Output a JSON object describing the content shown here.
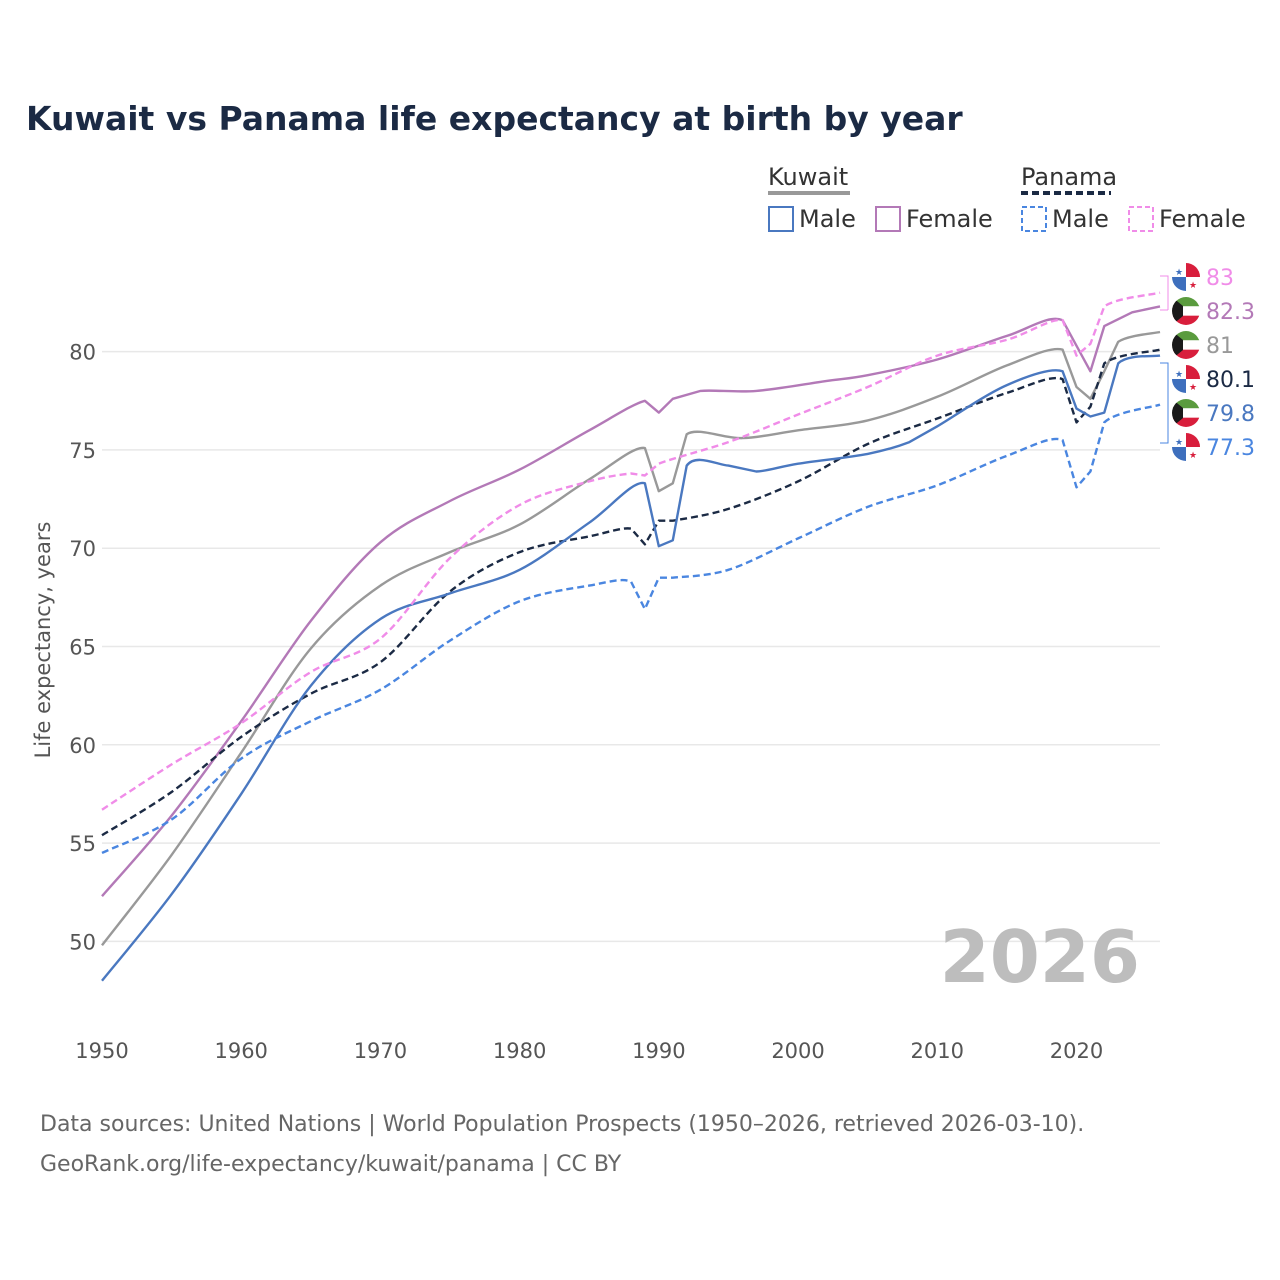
{
  "chart_data": {
    "type": "line",
    "title": "Kuwait vs Panama life expectancy at birth by year",
    "xlabel": "",
    "ylabel": "Life expectancy, years",
    "xlim": [
      1950,
      2026
    ],
    "ylim": [
      46,
      84
    ],
    "x_ticks": [
      1950,
      1960,
      1970,
      1980,
      1990,
      2000,
      2010,
      2020
    ],
    "y_ticks": [
      50,
      55,
      60,
      65,
      70,
      75,
      80
    ],
    "year_watermark": "2026",
    "legend": {
      "groups": [
        {
          "name": "Kuwait",
          "color": "#999999",
          "dash": "solid",
          "items": [
            "Male",
            "Female"
          ]
        },
        {
          "name": "Panama",
          "color": "#1b2a44",
          "dash": "dashed",
          "items": [
            "Male",
            "Female"
          ]
        }
      ]
    },
    "series": [
      {
        "name": "Kuwait Female",
        "country": "Kuwait",
        "color": "#b379b7",
        "dash": "solid",
        "end_label": "82.3",
        "points": [
          [
            1950,
            52.3
          ],
          [
            1955,
            56.4
          ],
          [
            1960,
            61.2
          ],
          [
            1965,
            66.3
          ],
          [
            1970,
            70.3
          ],
          [
            1975,
            72.4
          ],
          [
            1980,
            74.0
          ],
          [
            1985,
            76.0
          ],
          [
            1989,
            77.5
          ],
          [
            1990,
            76.9
          ],
          [
            1991,
            77.6
          ],
          [
            1993,
            78.0
          ],
          [
            1997,
            78.0
          ],
          [
            2002,
            78.5
          ],
          [
            2005,
            78.8
          ],
          [
            2010,
            79.6
          ],
          [
            2015,
            80.8
          ],
          [
            2019,
            81.6
          ],
          [
            2021,
            79.0
          ],
          [
            2022,
            81.3
          ],
          [
            2024,
            82.0
          ],
          [
            2026,
            82.3
          ]
        ]
      },
      {
        "name": "Kuwait Both",
        "country": "Kuwait",
        "color": "#999999",
        "dash": "solid",
        "end_label": "81",
        "points": [
          [
            1950,
            49.8
          ],
          [
            1955,
            54.4
          ],
          [
            1960,
            59.6
          ],
          [
            1965,
            64.9
          ],
          [
            1970,
            68.1
          ],
          [
            1975,
            69.8
          ],
          [
            1980,
            71.2
          ],
          [
            1985,
            73.5
          ],
          [
            1989,
            75.1
          ],
          [
            1990,
            72.9
          ],
          [
            1991,
            73.3
          ],
          [
            1992,
            75.8
          ],
          [
            1996,
            75.6
          ],
          [
            2000,
            76.0
          ],
          [
            2005,
            76.5
          ],
          [
            2010,
            77.7
          ],
          [
            2015,
            79.3
          ],
          [
            2019,
            80.1
          ],
          [
            2020,
            78.2
          ],
          [
            2021,
            77.6
          ],
          [
            2022,
            79.0
          ],
          [
            2023,
            80.5
          ],
          [
            2026,
            81.0
          ]
        ]
      },
      {
        "name": "Panama Both",
        "country": "Panama",
        "color": "#1b2a44",
        "dash": "dashed",
        "end_label": "80.1",
        "points": [
          [
            1950,
            55.4
          ],
          [
            1955,
            57.6
          ],
          [
            1960,
            60.4
          ],
          [
            1965,
            62.6
          ],
          [
            1970,
            64.2
          ],
          [
            1975,
            67.8
          ],
          [
            1980,
            69.8
          ],
          [
            1985,
            70.6
          ],
          [
            1988,
            71.0
          ],
          [
            1989,
            70.2
          ],
          [
            1990,
            71.4
          ],
          [
            1991,
            71.4
          ],
          [
            1995,
            72.0
          ],
          [
            2000,
            73.4
          ],
          [
            2005,
            75.3
          ],
          [
            2010,
            76.6
          ],
          [
            2015,
            77.9
          ],
          [
            2019,
            78.6
          ],
          [
            2020,
            76.4
          ],
          [
            2021,
            77.2
          ],
          [
            2022,
            79.4
          ],
          [
            2026,
            80.1
          ]
        ]
      },
      {
        "name": "Kuwait Male",
        "country": "Kuwait",
        "color": "#4a78c0",
        "dash": "solid",
        "end_label": "79.8",
        "points": [
          [
            1950,
            48.0
          ],
          [
            1955,
            52.4
          ],
          [
            1960,
            57.5
          ],
          [
            1965,
            63.0
          ],
          [
            1970,
            66.4
          ],
          [
            1975,
            67.7
          ],
          [
            1980,
            68.9
          ],
          [
            1985,
            71.3
          ],
          [
            1989,
            73.3
          ],
          [
            1990,
            70.1
          ],
          [
            1991,
            70.4
          ],
          [
            1992,
            74.2
          ],
          [
            1995,
            74.2
          ],
          [
            1997,
            73.9
          ],
          [
            2000,
            74.3
          ],
          [
            2005,
            74.8
          ],
          [
            2008,
            75.4
          ],
          [
            2010,
            76.2
          ],
          [
            2015,
            78.3
          ],
          [
            2019,
            79.0
          ],
          [
            2020,
            77.1
          ],
          [
            2021,
            76.7
          ],
          [
            2022,
            76.9
          ],
          [
            2023,
            79.4
          ],
          [
            2026,
            79.8
          ]
        ]
      },
      {
        "name": "Panama Male",
        "country": "Panama",
        "color": "#4a86e0",
        "dash": "dashed",
        "end_label": "77.3",
        "points": [
          [
            1950,
            54.5
          ],
          [
            1955,
            56.2
          ],
          [
            1960,
            59.3
          ],
          [
            1965,
            61.2
          ],
          [
            1970,
            62.8
          ],
          [
            1975,
            65.3
          ],
          [
            1980,
            67.3
          ],
          [
            1985,
            68.1
          ],
          [
            1988,
            68.3
          ],
          [
            1989,
            66.9
          ],
          [
            1990,
            68.5
          ],
          [
            1991,
            68.5
          ],
          [
            1995,
            68.9
          ],
          [
            2000,
            70.5
          ],
          [
            2005,
            72.1
          ],
          [
            2010,
            73.2
          ],
          [
            2015,
            74.7
          ],
          [
            2019,
            75.5
          ],
          [
            2020,
            73.1
          ],
          [
            2021,
            73.9
          ],
          [
            2022,
            76.4
          ],
          [
            2026,
            77.3
          ]
        ]
      },
      {
        "name": "Panama Female",
        "country": "Panama",
        "color": "#f08ce8",
        "dash": "dashed",
        "end_label": "83",
        "points": [
          [
            1950,
            56.7
          ],
          [
            1955,
            59.0
          ],
          [
            1960,
            61.1
          ],
          [
            1965,
            63.7
          ],
          [
            1970,
            65.4
          ],
          [
            1975,
            69.5
          ],
          [
            1980,
            72.2
          ],
          [
            1985,
            73.4
          ],
          [
            1988,
            73.8
          ],
          [
            1989,
            73.7
          ],
          [
            1990,
            74.3
          ],
          [
            1995,
            75.4
          ],
          [
            2000,
            76.8
          ],
          [
            2005,
            78.2
          ],
          [
            2010,
            79.8
          ],
          [
            2015,
            80.6
          ],
          [
            2019,
            81.6
          ],
          [
            2020,
            79.8
          ],
          [
            2021,
            80.4
          ],
          [
            2022,
            82.3
          ],
          [
            2026,
            83.0
          ]
        ]
      }
    ],
    "end_label_order": [
      "83",
      "82.3",
      "81",
      "80.1",
      "79.8",
      "77.3"
    ],
    "end_label_flags": [
      "Panama",
      "Kuwait",
      "Kuwait",
      "Panama",
      "Kuwait",
      "Panama"
    ]
  },
  "source": {
    "line1": "Data sources: United Nations | World Population Prospects (1950–2026, retrieved 2026-03-10).",
    "line2": "GeoRank.org/life-expectancy/kuwait/panama | CC BY"
  },
  "colors": {
    "kuwait_male": "#4a78c0",
    "kuwait_female": "#b379b7",
    "panama_male": "#4a86e0",
    "panama_female": "#f08ce8",
    "kuwait_both": "#999999",
    "panama_both": "#1b2a44"
  }
}
